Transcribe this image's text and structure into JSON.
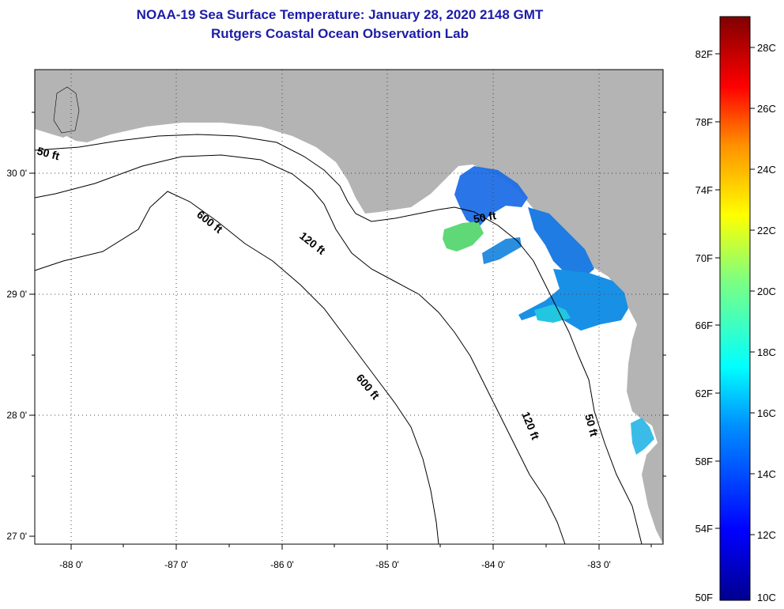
{
  "title": "NOAA-19 Sea Surface Temperature:  January 28, 2020 2148 GMT",
  "subtitle": "Rutgers Coastal Ocean Observation Lab",
  "map": {
    "lat_labels": [
      "30 0'",
      "29 0'",
      "28 0'",
      "27 0'"
    ],
    "lon_labels": [
      "-88 0'",
      "-87 0'",
      "-86 0'",
      "-85 0'",
      "-84 0'",
      "-83 0'"
    ],
    "contour_labels": [
      "50 ft",
      "600 ft",
      "120 ft",
      "50 ft",
      "600 ft",
      "120 ft",
      "50 ft"
    ],
    "colors": {
      "land": "#b4b4b4",
      "ocean": "#ffffff",
      "title": "#1c1ca8"
    }
  },
  "colorbar": {
    "fahrenheit": [
      "82F",
      "78F",
      "74F",
      "70F",
      "66F",
      "62F",
      "58F",
      "54F",
      "50F"
    ],
    "celsius": [
      "28C",
      "26C",
      "24C",
      "22C",
      "20C",
      "18C",
      "16C",
      "14C",
      "12C",
      "10C"
    ]
  }
}
